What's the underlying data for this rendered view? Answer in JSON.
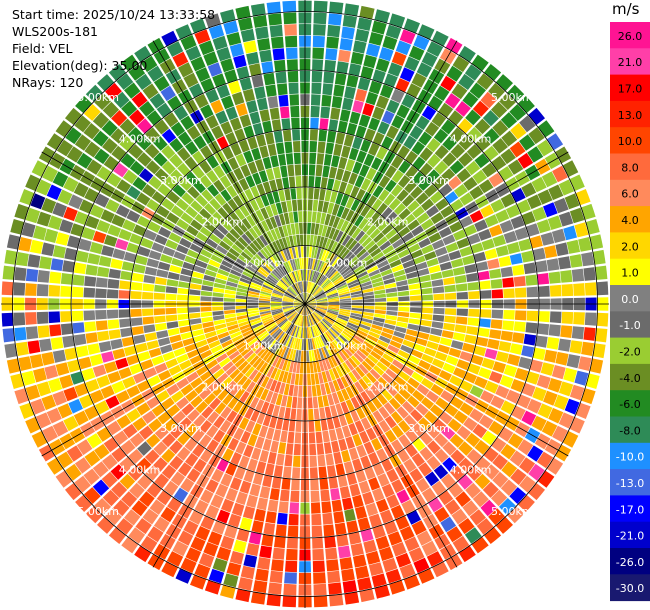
{
  "info": {
    "start_time": "Start time: 2025/10/24 13:33:58",
    "instrument": "WLS200s-181",
    "field": "Field: VEL",
    "elevation": "Elevation(deg): 35.00",
    "nrays": "NRays: 120"
  },
  "chart_data": {
    "type": "heatmap",
    "projection": "polar PPI",
    "field": "VEL",
    "units": "m/s",
    "n_rays": 120,
    "elevation_deg": 35.0,
    "ring_labels": [
      "1.00km",
      "2.00km",
      "3.00km",
      "4.00km",
      "5.00km"
    ],
    "ring_distances_km": [
      1,
      2,
      3,
      4,
      5
    ],
    "colorbar": {
      "title": "m/s",
      "tick_labels": [
        "26.0",
        "21.0",
        "17.0",
        "13.0",
        "10.0",
        "8.0",
        "6.0",
        "4.0",
        "2.0",
        "1.0",
        "0.0",
        "-1.0",
        "-2.0",
        "-4.0",
        "-6.0",
        "-8.0",
        "-10.0",
        "-13.0",
        "-17.0",
        "-21.0",
        "-26.0",
        "-30.0"
      ],
      "colors": [
        "#ff1493",
        "#ff3fa8",
        "#ff0000",
        "#ff2200",
        "#ff4500",
        "#ff6a3c",
        "#ff8a5c",
        "#ffa500",
        "#ffd700",
        "#ffff00",
        "#808080",
        "#6b6b6b",
        "#9acd32",
        "#6b8e23",
        "#228b22",
        "#2e8b57",
        "#1e90ff",
        "#4169e1",
        "#0000ff",
        "#0000cd",
        "#000080",
        "#191970"
      ]
    },
    "pattern": {
      "receding_sector": "south (warm colors, ~2 to 10 m/s)",
      "approaching_sector": "north (green, ~-2 to -8 m/s)",
      "near_range": "gray ~0 m/s"
    }
  }
}
